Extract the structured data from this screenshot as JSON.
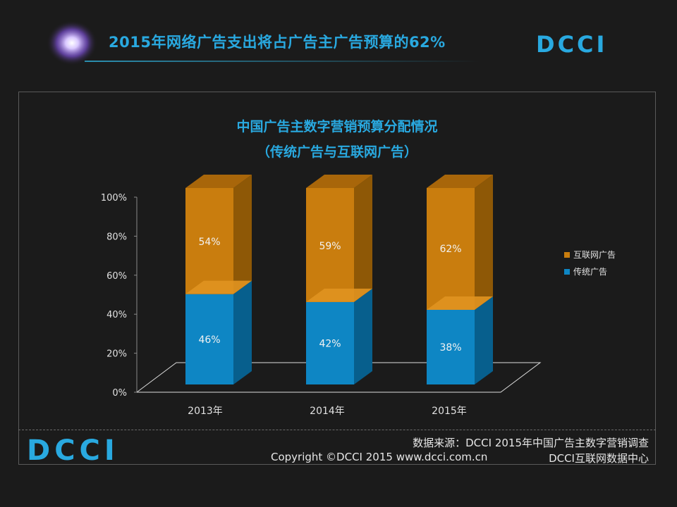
{
  "header": {
    "title": "2015年网络广告支出将占广告主广告预算的62%",
    "brand_logo_text": "DCCI"
  },
  "footer": {
    "source": "数据来源：DCCI  2015年中国广告主数字营销调查",
    "copyright": "Copyright ©DCCI 2015 www.dcci.com.cn",
    "center": "DCCI互联网数据中心",
    "logo_text": "DCCI"
  },
  "colors": {
    "accent_blue": "#29a9e0",
    "logo_orange": "#f7941d",
    "internet_series": "#c97d0e",
    "traditional_series": "#0e86c4"
  },
  "chart_data": {
    "type": "bar",
    "stacked": true,
    "three_d": true,
    "title": "中国广告主数字营销预算分配情况",
    "subtitle": "（传统广告与互联网广告）",
    "categories": [
      "2013年",
      "2014年",
      "2015年"
    ],
    "series": [
      {
        "name": "传统广告",
        "values": [
          46,
          42,
          38
        ],
        "labels": [
          "46%",
          "42%",
          "38%"
        ]
      },
      {
        "name": "互联网广告",
        "values": [
          54,
          59,
          62
        ],
        "labels": [
          "54%",
          "59%",
          "62%"
        ]
      }
    ],
    "legend": [
      "互联网广告",
      "传统广告"
    ],
    "legend_position": "right",
    "y_ticks": [
      "0%",
      "20%",
      "40%",
      "60%",
      "80%",
      "100%"
    ],
    "ylim": [
      0,
      100
    ],
    "xlabel": "",
    "ylabel": ""
  }
}
